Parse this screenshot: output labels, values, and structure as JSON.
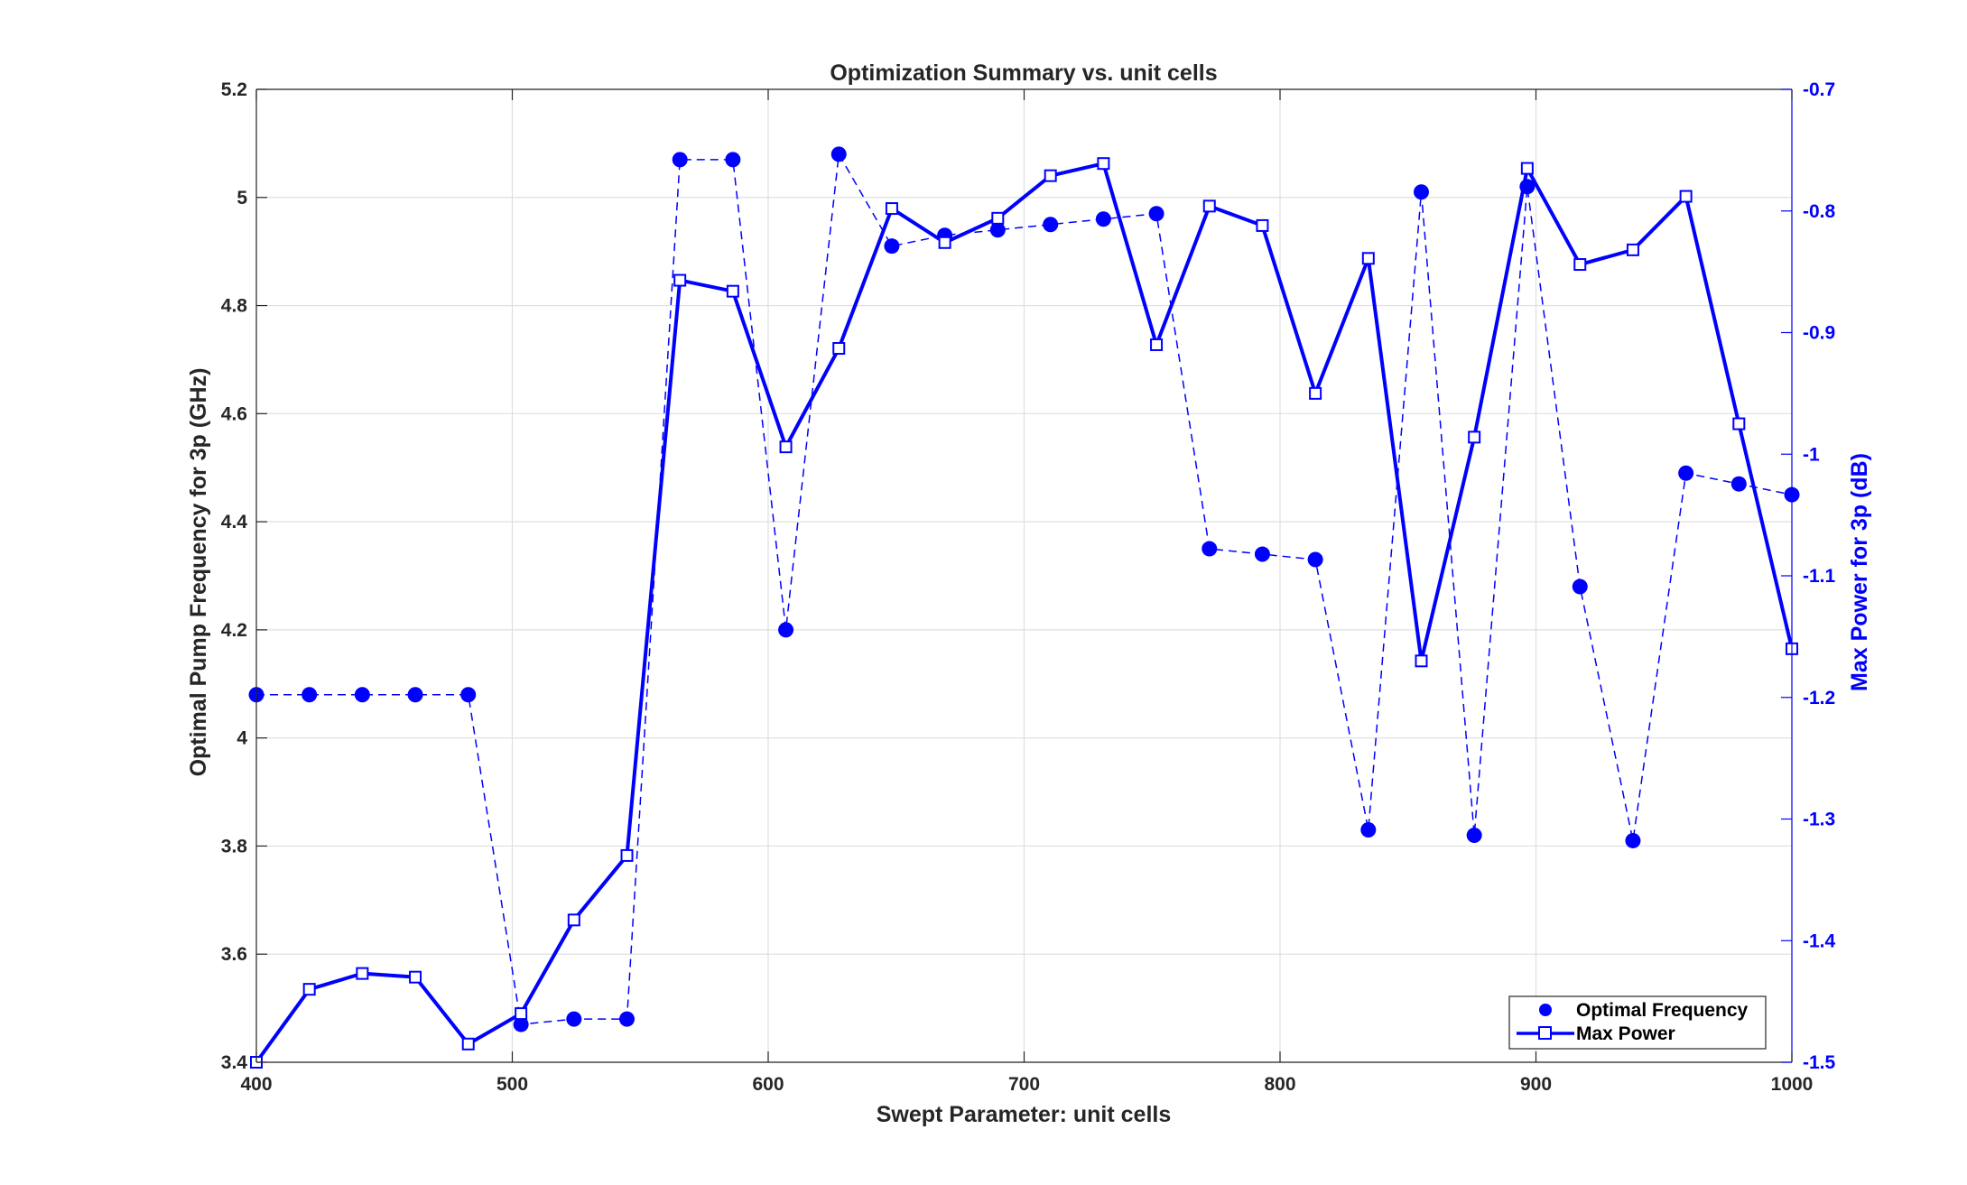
{
  "chart_data": {
    "type": "line",
    "title": "Optimization Summary vs. unit cells",
    "xlabel": "Swept Parameter: unit cells",
    "ylabel_left": "Optimal Pump Frequency for 3p (GHz)",
    "ylabel_right": "Max Power for 3p (dB)",
    "xlim": [
      400,
      1000
    ],
    "ylim_left": [
      3.4,
      5.2
    ],
    "ylim_right": [
      -1.5,
      -0.7
    ],
    "grid": true,
    "legend_position": "bottom-right",
    "x": [
      400,
      420.7,
      441.4,
      462.1,
      482.8,
      503.4,
      524.1,
      544.8,
      565.5,
      586.2,
      606.9,
      627.6,
      648.3,
      669.0,
      689.7,
      710.3,
      731.0,
      751.7,
      772.4,
      793.1,
      813.8,
      834.5,
      855.2,
      875.9,
      896.6,
      917.2,
      937.9,
      958.6,
      979.3,
      1000
    ],
    "series": [
      {
        "name": "Optimal Frequency",
        "axis": "left",
        "color": "#0000ff",
        "style": "dashed-filled-circle",
        "values": [
          4.08,
          4.08,
          4.08,
          4.08,
          4.08,
          3.47,
          3.48,
          3.48,
          5.07,
          5.07,
          4.2,
          5.08,
          4.91,
          4.93,
          4.94,
          4.95,
          4.96,
          4.97,
          4.35,
          4.34,
          4.33,
          3.83,
          5.01,
          3.82,
          5.02,
          4.28,
          3.81,
          4.49,
          4.47,
          4.45
        ]
      },
      {
        "name": "Max Power",
        "axis": "right",
        "color": "#0000ff",
        "style": "solid-open-square",
        "values": [
          -1.5,
          -1.44,
          -1.427,
          -1.43,
          -1.485,
          -1.46,
          -1.383,
          -1.33,
          -0.857,
          -0.866,
          -0.994,
          -0.913,
          -0.798,
          -0.826,
          -0.806,
          -0.771,
          -0.761,
          -0.91,
          -0.796,
          -0.812,
          -0.95,
          -0.839,
          -1.17,
          -0.986,
          -0.765,
          -0.844,
          -0.832,
          -0.788,
          -0.975,
          -1.16
        ]
      }
    ],
    "x_ticks": [
      "400",
      "500",
      "600",
      "700",
      "800",
      "900",
      "1000"
    ],
    "y_left_ticks": [
      "3.4",
      "3.6",
      "3.8",
      "4",
      "4.2",
      "4.4",
      "4.6",
      "4.8",
      "5",
      "5.2"
    ],
    "y_right_ticks": [
      "-1.5",
      "-1.4",
      "-1.3",
      "-1.2",
      "-1.1",
      "-1",
      "-0.9",
      "-0.8",
      "-0.7"
    ]
  }
}
